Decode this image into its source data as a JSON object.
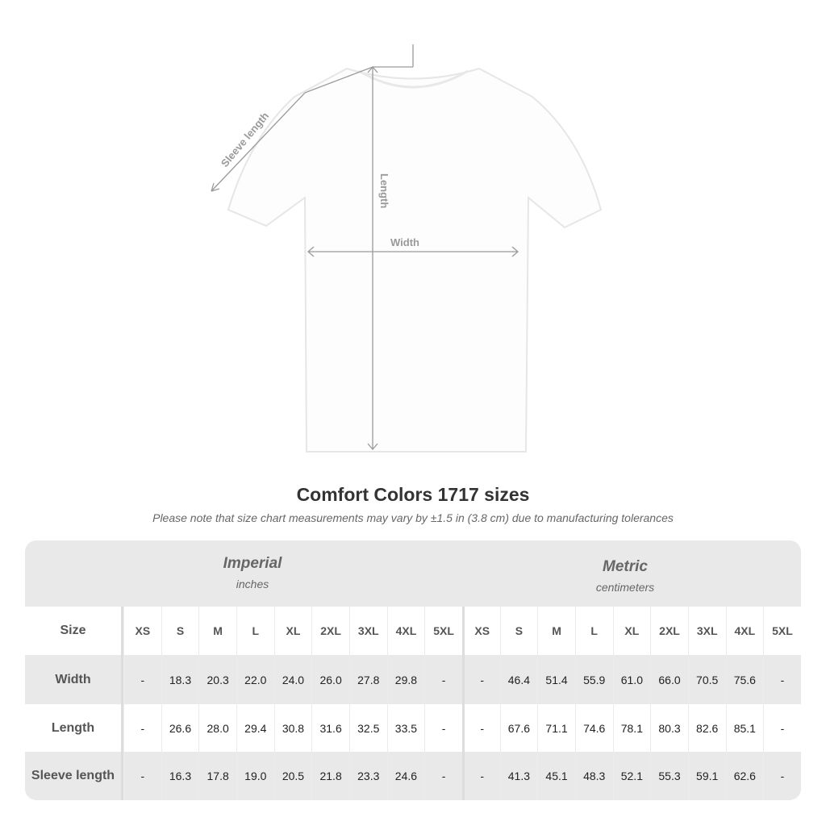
{
  "diagram": {
    "sleeve_label": "Sleeve length",
    "length_label": "Length",
    "width_label": "Width"
  },
  "title": "Comfort Colors 1717 sizes",
  "subtitle": "Please note that size chart measurements may vary by ±1.5 in (3.8 cm) due to manufacturing tolerances",
  "imperial": {
    "name": "Imperial",
    "unit": "inches"
  },
  "metric": {
    "name": "Metric",
    "unit": "centimeters"
  },
  "size_label": "Size",
  "sizes": [
    "XS",
    "S",
    "M",
    "L",
    "XL",
    "2XL",
    "3XL",
    "4XL",
    "5XL"
  ],
  "rows": [
    {
      "label": "Width",
      "imperial": [
        "-",
        "18.3",
        "20.3",
        "22.0",
        "24.0",
        "26.0",
        "27.8",
        "29.8",
        "-"
      ],
      "metric": [
        "-",
        "46.4",
        "51.4",
        "55.9",
        "61.0",
        "66.0",
        "70.5",
        "75.6",
        "-"
      ]
    },
    {
      "label": "Length",
      "imperial": [
        "-",
        "26.6",
        "28.0",
        "29.4",
        "30.8",
        "31.6",
        "32.5",
        "33.5",
        "-"
      ],
      "metric": [
        "-",
        "67.6",
        "71.1",
        "74.6",
        "78.1",
        "80.3",
        "82.6",
        "85.1",
        "-"
      ]
    },
    {
      "label": "Sleeve length",
      "imperial": [
        "-",
        "16.3",
        "17.8",
        "19.0",
        "20.5",
        "21.8",
        "23.3",
        "24.6",
        "-"
      ],
      "metric": [
        "-",
        "41.3",
        "45.1",
        "48.3",
        "52.1",
        "55.3",
        "59.1",
        "62.6",
        "-"
      ]
    }
  ]
}
